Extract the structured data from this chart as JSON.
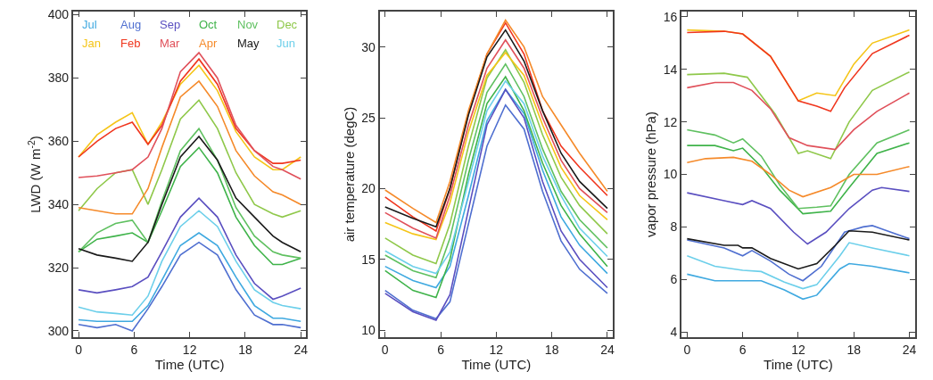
{
  "chart_data": [
    {
      "type": "line",
      "xlabel": "Time (UTC)",
      "ylabel": "LWD (W m$^{-2}$)",
      "xlim": [
        -0.6,
        24.6
      ],
      "xticks": [
        0,
        6,
        12,
        18,
        24
      ],
      "ylim": [
        298,
        401
      ],
      "yticks": [
        300,
        320,
        340,
        360,
        380,
        400
      ],
      "legend": "top",
      "marker": "none",
      "line_style": "solid",
      "x": [
        0,
        2,
        4,
        5.8,
        7.5,
        9,
        11,
        13,
        15,
        17,
        19,
        21,
        22,
        24
      ],
      "series": [
        {
          "name": "Jul",
          "color": "#3fa9e0",
          "values": [
            303.5,
            303,
            303,
            303,
            308,
            316,
            327,
            331,
            327,
            317,
            308,
            304,
            304,
            303
          ]
        },
        {
          "name": "Aug",
          "color": "#4f6fd0",
          "values": [
            302,
            301,
            302,
            300,
            307,
            314,
            324,
            328,
            324,
            313,
            305,
            302,
            302,
            301
          ]
        },
        {
          "name": "Sep",
          "color": "#5a4fc0",
          "values": [
            313,
            312,
            313,
            314,
            317,
            325,
            336,
            342,
            336,
            324,
            315,
            310,
            311,
            313.5
          ]
        },
        {
          "name": "Oct",
          "color": "#3fb34a",
          "values": [
            325,
            329,
            330,
            331,
            328,
            338,
            352,
            358,
            350,
            336,
            327,
            321,
            321,
            323
          ]
        },
        {
          "name": "Nov",
          "color": "#5fc060",
          "values": [
            325,
            331,
            334,
            335,
            328,
            341,
            357,
            364,
            354,
            339,
            330,
            325,
            324,
            323
          ]
        },
        {
          "name": "Dec",
          "color": "#8fc84a",
          "values": [
            338,
            345,
            350,
            351,
            340,
            351,
            367,
            373,
            364,
            350,
            340,
            337,
            336,
            338
          ]
        },
        {
          "name": "Jan",
          "color": "#f5c518",
          "values": [
            355,
            362,
            366,
            369,
            359,
            366,
            378,
            384,
            376,
            363,
            355,
            351,
            351,
            355
          ]
        },
        {
          "name": "Feb",
          "color": "#f0361e",
          "values": [
            355,
            360,
            364,
            366,
            359,
            365,
            379,
            386,
            378,
            364,
            357,
            353,
            353,
            354
          ]
        },
        {
          "name": "Mar",
          "color": "#e0505a",
          "values": [
            348.5,
            349,
            350,
            351,
            355,
            364,
            382,
            388,
            380,
            365,
            357,
            352,
            351,
            348
          ]
        },
        {
          "name": "Apr",
          "color": "#f58a2a",
          "values": [
            339,
            338,
            337,
            337,
            345,
            358,
            374,
            379,
            371,
            357,
            349,
            344,
            343,
            340
          ]
        },
        {
          "name": "May",
          "color": "#1a1a1a",
          "values": [
            326,
            324,
            323,
            322,
            328,
            340,
            355,
            361.5,
            354,
            342,
            336,
            330,
            328,
            325
          ]
        },
        {
          "name": "Jun",
          "color": "#6ccfea",
          "values": [
            307.5,
            306,
            305.5,
            305,
            311,
            322,
            333,
            338,
            333,
            322,
            313,
            309,
            308,
            307
          ]
        }
      ]
    },
    {
      "type": "line",
      "xlabel": "Time (UTC)",
      "ylabel": "air temperature (degC)",
      "xlim": [
        -0.6,
        24.6
      ],
      "xticks": [
        0,
        6,
        12,
        18,
        24
      ],
      "ylim": [
        9.5,
        32.5
      ],
      "yticks": [
        10,
        15,
        20,
        25,
        30
      ],
      "marker": "none",
      "line_style": "solid",
      "x": [
        0,
        3,
        5.5,
        7,
        9,
        11,
        13,
        15,
        17,
        19,
        21,
        24
      ],
      "series": [
        {
          "color": "#3fa9e0",
          "values": [
            14.5,
            13.5,
            13.0,
            14.5,
            19.5,
            24.8,
            27.0,
            25.3,
            21.3,
            18,
            16,
            14.0
          ]
        },
        {
          "color": "#4f6fd0",
          "values": [
            12.8,
            11.4,
            10.8,
            12,
            17.5,
            23,
            25.9,
            24.2,
            19.8,
            16.3,
            14.3,
            12.6
          ]
        },
        {
          "color": "#5a4fc0",
          "values": [
            12.6,
            11.3,
            10.7,
            12.5,
            18.5,
            24.5,
            27.0,
            25,
            20.5,
            17,
            15,
            13.0
          ]
        },
        {
          "color": "#3fb34a",
          "values": [
            14.2,
            12.8,
            12.3,
            15,
            21,
            26,
            27.9,
            25.5,
            21.8,
            18.8,
            16.8,
            14.5
          ]
        },
        {
          "color": "#5fc060",
          "values": [
            15.3,
            14.2,
            13.7,
            16.5,
            22,
            26.8,
            28.8,
            26.5,
            22.8,
            19.8,
            17.8,
            15.8
          ]
        },
        {
          "color": "#8fc84a",
          "values": [
            16.5,
            15.3,
            14.7,
            17.5,
            23,
            27.8,
            29.8,
            27.5,
            23.8,
            20.8,
            18.8,
            16.8
          ]
        },
        {
          "color": "#f5c518",
          "values": [
            17.6,
            16.8,
            16.4,
            19,
            24,
            28,
            29.6,
            28,
            24.5,
            21.5,
            19.5,
            17.8
          ]
        },
        {
          "color": "#f0361e",
          "values": [
            19.4,
            18.0,
            17.0,
            20,
            25.3,
            29.5,
            31.7,
            29.5,
            25.5,
            23,
            21.5,
            19.5
          ]
        },
        {
          "color": "#e0505a",
          "values": [
            18.3,
            17.2,
            16.5,
            19.5,
            24.5,
            28.5,
            30.5,
            28.5,
            25,
            22,
            20,
            18.3
          ]
        },
        {
          "color": "#f58a2a",
          "values": [
            19.9,
            18.6,
            17.6,
            20.5,
            25.5,
            29.5,
            31.9,
            30,
            26.5,
            24.5,
            22.5,
            19.8
          ]
        },
        {
          "color": "#1a1a1a",
          "values": [
            18.7,
            17.9,
            17.3,
            20,
            25.2,
            29.3,
            31.2,
            29,
            25.5,
            22.5,
            20.5,
            18.6
          ]
        },
        {
          "color": "#6ccfea",
          "values": [
            15.6,
            14.5,
            14.0,
            15.5,
            20.5,
            25.5,
            27.6,
            26,
            22.3,
            19.5,
            17.2,
            15.2
          ]
        }
      ]
    },
    {
      "type": "line",
      "xlabel": "Time (UTC)",
      "ylabel": "vapor pressure (hPa)",
      "xlim": [
        -0.6,
        24.6
      ],
      "xticks": [
        0,
        6,
        12,
        18,
        24
      ],
      "ylim": [
        3.8,
        16.2
      ],
      "yticks": [
        4,
        6,
        8,
        10,
        12,
        14,
        16
      ],
      "marker": "none",
      "line_style": "solid",
      "series": [
        {
          "color": "#3fa9e0",
          "x": [
            0,
            3,
            6,
            8,
            10.5,
            12.5,
            14,
            16.5,
            17.5,
            20,
            24
          ],
          "values": [
            6.2,
            5.95,
            5.95,
            5.95,
            5.6,
            5.25,
            5.4,
            6.4,
            6.6,
            6.5,
            6.25
          ]
        },
        {
          "color": "#4f6fd0",
          "x": [
            0,
            4,
            6,
            7,
            9,
            11,
            12.5,
            14.5,
            17,
            19,
            20,
            24
          ],
          "values": [
            7.5,
            7.2,
            6.9,
            7.1,
            6.7,
            6.2,
            5.95,
            6.5,
            7.8,
            8.0,
            8.05,
            7.55
          ]
        },
        {
          "color": "#5a4fc0",
          "x": [
            0,
            4,
            6,
            7,
            9,
            11.5,
            13,
            15,
            17.5,
            20,
            21,
            24
          ],
          "values": [
            9.3,
            9.0,
            8.85,
            9.0,
            8.7,
            7.8,
            7.35,
            7.8,
            8.7,
            9.4,
            9.5,
            9.35
          ]
        },
        {
          "color": "#3fb34a",
          "x": [
            0,
            3,
            5,
            6,
            8,
            10,
            12.5,
            15.5,
            17.5,
            20.5,
            24
          ],
          "values": [
            11.1,
            11.1,
            10.9,
            11.0,
            10.3,
            9.4,
            8.5,
            8.6,
            9.5,
            10.8,
            11.2
          ]
        },
        {
          "color": "#5fc060",
          "x": [
            0,
            3,
            5,
            6,
            8,
            10,
            12,
            14,
            15.5,
            17.5,
            20.5,
            24
          ],
          "values": [
            11.7,
            11.5,
            11.2,
            11.35,
            10.7,
            9.6,
            8.7,
            8.75,
            8.8,
            10.0,
            11.2,
            11.7
          ]
        },
        {
          "color": "#8fc84a",
          "x": [
            0,
            4,
            6.5,
            9.5,
            12,
            13,
            15.5,
            17.5,
            20,
            24
          ],
          "values": [
            13.8,
            13.85,
            13.7,
            12.3,
            10.8,
            10.9,
            10.6,
            12.0,
            13.2,
            13.9
          ]
        },
        {
          "color": "#f5c518",
          "x": [
            0,
            4,
            6,
            9,
            12,
            14,
            16,
            18,
            20,
            24
          ],
          "values": [
            15.5,
            15.45,
            15.35,
            14.5,
            12.8,
            13.1,
            13.0,
            14.2,
            15.0,
            15.5
          ]
        },
        {
          "color": "#f0361e",
          "x": [
            0,
            4,
            6,
            9,
            12,
            14,
            15.5,
            17,
            20,
            24
          ],
          "values": [
            15.4,
            15.45,
            15.35,
            14.5,
            12.8,
            12.6,
            12.4,
            13.3,
            14.6,
            15.3
          ]
        },
        {
          "color": "#e0505a",
          "x": [
            0,
            3,
            5,
            7,
            9,
            11,
            13,
            16,
            18,
            20.5,
            24
          ],
          "values": [
            13.3,
            13.5,
            13.5,
            13.2,
            12.5,
            11.4,
            11.1,
            10.95,
            11.7,
            12.4,
            13.1
          ]
        },
        {
          "color": "#f58a2a",
          "x": [
            0,
            2,
            5,
            7,
            9,
            11,
            12.5,
            15.5,
            18,
            20.5,
            24
          ],
          "values": [
            10.45,
            10.6,
            10.65,
            10.5,
            10.0,
            9.4,
            9.15,
            9.5,
            10.0,
            10.0,
            10.3
          ]
        },
        {
          "color": "#1a1a1a",
          "x": [
            0,
            4,
            5.5,
            6,
            7,
            9,
            12,
            14,
            16,
            17.5,
            20,
            24
          ],
          "values": [
            7.55,
            7.3,
            7.3,
            7.2,
            7.2,
            6.8,
            6.4,
            6.6,
            7.3,
            7.85,
            7.8,
            7.5
          ]
        },
        {
          "color": "#6ccfea",
          "x": [
            0,
            3,
            6,
            8,
            10.5,
            12.5,
            14,
            16.5,
            17.5,
            20,
            24
          ],
          "values": [
            6.9,
            6.5,
            6.35,
            6.3,
            5.9,
            5.65,
            5.8,
            6.9,
            7.4,
            7.2,
            6.9
          ]
        }
      ]
    }
  ]
}
